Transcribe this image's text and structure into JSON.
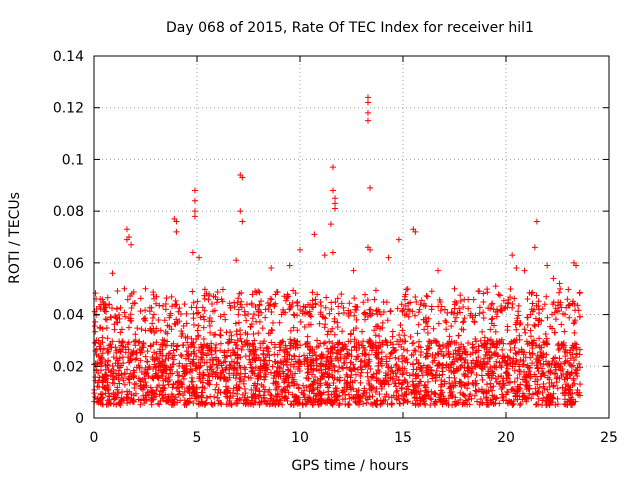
{
  "chart_data": {
    "type": "scatter",
    "title": "Day 068 of 2015, Rate Of TEC Index for receiver hil1",
    "xlabel": "GPS time / hours",
    "ylabel": "ROTI / TECUs",
    "xlim": [
      0,
      25
    ],
    "ylim": [
      0,
      0.14
    ],
    "xticks": [
      0,
      5,
      10,
      15,
      20,
      25
    ],
    "xtick_labels": [
      "0",
      "5",
      "10",
      "15",
      "20",
      "25"
    ],
    "yticks": [
      0,
      0.02,
      0.04,
      0.06,
      0.08,
      0.1,
      0.12,
      0.14
    ],
    "ytick_labels": [
      "0",
      "0.02",
      "0.04",
      "0.06",
      "0.08",
      "0.1",
      "0.12",
      "0.14"
    ],
    "grid": true,
    "marker": "+",
    "series": [
      {
        "name": "ROTI",
        "color": "#ff0000",
        "x_range": [
          0,
          23.6
        ],
        "typical_range": [
          0.005,
          0.045
        ],
        "points": [
          {
            "x": 0.1,
            "y": 0.046
          },
          {
            "x": 0.3,
            "y": 0.046
          },
          {
            "x": 0.8,
            "y": 0.039
          },
          {
            "x": 0.9,
            "y": 0.056
          },
          {
            "x": 1.6,
            "y": 0.073
          },
          {
            "x": 1.6,
            "y": 0.069
          },
          {
            "x": 1.7,
            "y": 0.07
          },
          {
            "x": 1.8,
            "y": 0.067
          },
          {
            "x": 2.5,
            "y": 0.05
          },
          {
            "x": 3.9,
            "y": 0.077
          },
          {
            "x": 4.0,
            "y": 0.076
          },
          {
            "x": 4.0,
            "y": 0.072
          },
          {
            "x": 4.9,
            "y": 0.088
          },
          {
            "x": 4.9,
            "y": 0.084
          },
          {
            "x": 4.9,
            "y": 0.08
          },
          {
            "x": 4.9,
            "y": 0.078
          },
          {
            "x": 4.8,
            "y": 0.064
          },
          {
            "x": 5.1,
            "y": 0.062
          },
          {
            "x": 7.1,
            "y": 0.094
          },
          {
            "x": 7.2,
            "y": 0.093
          },
          {
            "x": 7.1,
            "y": 0.08
          },
          {
            "x": 7.2,
            "y": 0.076
          },
          {
            "x": 6.9,
            "y": 0.061
          },
          {
            "x": 8.6,
            "y": 0.058
          },
          {
            "x": 9.5,
            "y": 0.059
          },
          {
            "x": 10.0,
            "y": 0.065
          },
          {
            "x": 10.7,
            "y": 0.071
          },
          {
            "x": 11.2,
            "y": 0.063
          },
          {
            "x": 11.5,
            "y": 0.075
          },
          {
            "x": 11.6,
            "y": 0.097
          },
          {
            "x": 11.6,
            "y": 0.088
          },
          {
            "x": 11.7,
            "y": 0.085
          },
          {
            "x": 11.7,
            "y": 0.083
          },
          {
            "x": 11.7,
            "y": 0.081
          },
          {
            "x": 11.6,
            "y": 0.064
          },
          {
            "x": 12.6,
            "y": 0.057
          },
          {
            "x": 13.3,
            "y": 0.124
          },
          {
            "x": 13.3,
            "y": 0.122
          },
          {
            "x": 13.3,
            "y": 0.118
          },
          {
            "x": 13.3,
            "y": 0.115
          },
          {
            "x": 13.4,
            "y": 0.089
          },
          {
            "x": 13.3,
            "y": 0.066
          },
          {
            "x": 13.4,
            "y": 0.065
          },
          {
            "x": 14.3,
            "y": 0.062
          },
          {
            "x": 14.8,
            "y": 0.069
          },
          {
            "x": 15.5,
            "y": 0.073
          },
          {
            "x": 15.6,
            "y": 0.072
          },
          {
            "x": 16.7,
            "y": 0.057
          },
          {
            "x": 17.5,
            "y": 0.05
          },
          {
            "x": 18.7,
            "y": 0.049
          },
          {
            "x": 19.5,
            "y": 0.051
          },
          {
            "x": 20.3,
            "y": 0.063
          },
          {
            "x": 20.5,
            "y": 0.058
          },
          {
            "x": 20.9,
            "y": 0.057
          },
          {
            "x": 21.5,
            "y": 0.076
          },
          {
            "x": 21.4,
            "y": 0.066
          },
          {
            "x": 22.0,
            "y": 0.059
          },
          {
            "x": 22.3,
            "y": 0.054
          },
          {
            "x": 22.6,
            "y": 0.052
          },
          {
            "x": 23.3,
            "y": 0.06
          },
          {
            "x": 23.4,
            "y": 0.059
          }
        ]
      }
    ]
  }
}
